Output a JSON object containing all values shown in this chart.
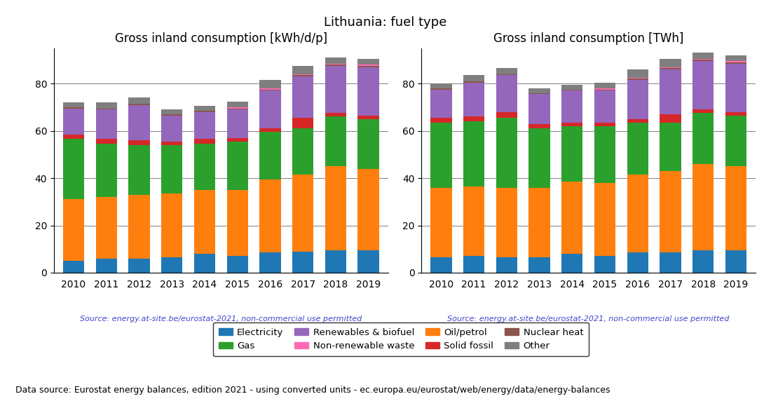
{
  "title": "Lithuania: fuel type",
  "subtitle_left": "Gross inland consumption [kWh/d/p]",
  "subtitle_right": "Gross inland consumption [TWh]",
  "source_text": "Source: energy.at-site.be/eurostat-2021, non-commercial use permitted",
  "footer_text": "Data source: Eurostat energy balances, edition 2021 - using converted units - ec.europa.eu/eurostat/web/energy/data/energy-balances",
  "years": [
    2010,
    2011,
    2012,
    2013,
    2014,
    2015,
    2016,
    2017,
    2018,
    2019
  ],
  "left_data": {
    "Electricity": [
      5.0,
      6.0,
      6.0,
      6.5,
      8.0,
      7.0,
      8.5,
      9.0,
      9.5,
      9.5
    ],
    "Oil/petrol": [
      26.0,
      26.0,
      27.0,
      27.0,
      27.0,
      28.0,
      31.0,
      32.5,
      35.5,
      34.5
    ],
    "Gas": [
      25.5,
      22.5,
      21.0,
      20.5,
      19.5,
      20.5,
      20.0,
      19.5,
      21.0,
      21.0
    ],
    "Solid fossil": [
      2.0,
      2.0,
      2.0,
      1.5,
      2.0,
      1.5,
      1.5,
      4.5,
      1.5,
      1.5
    ],
    "Renewables & biofuel": [
      11.0,
      12.5,
      15.0,
      11.0,
      11.5,
      12.0,
      16.0,
      17.5,
      20.0,
      20.5
    ],
    "Nuclear heat": [
      0.5,
      0.5,
      0.5,
      0.5,
      0.5,
      0.5,
      0.5,
      0.5,
      0.5,
      0.5
    ],
    "Non-renewable waste": [
      0.0,
      0.0,
      0.0,
      0.0,
      0.0,
      0.5,
      0.5,
      0.5,
      0.5,
      0.5
    ],
    "Other": [
      2.0,
      2.5,
      2.5,
      2.0,
      2.0,
      2.5,
      3.5,
      3.5,
      2.5,
      2.5
    ]
  },
  "right_data": {
    "Electricity": [
      6.5,
      7.0,
      6.5,
      6.5,
      8.0,
      7.0,
      8.5,
      8.5,
      9.5,
      9.5
    ],
    "Oil/petrol": [
      29.5,
      29.5,
      29.5,
      29.5,
      30.5,
      31.0,
      33.0,
      34.5,
      36.5,
      35.5
    ],
    "Gas": [
      27.5,
      27.5,
      29.5,
      25.0,
      23.5,
      24.0,
      22.0,
      20.5,
      21.5,
      21.5
    ],
    "Solid fossil": [
      2.0,
      2.0,
      2.5,
      2.0,
      1.5,
      1.5,
      1.5,
      3.5,
      1.5,
      1.5
    ],
    "Renewables & biofuel": [
      12.0,
      14.5,
      15.5,
      12.5,
      13.5,
      13.5,
      16.5,
      19.0,
      20.5,
      20.5
    ],
    "Nuclear heat": [
      0.5,
      0.5,
      0.5,
      0.5,
      0.5,
      0.5,
      0.5,
      0.5,
      0.5,
      0.5
    ],
    "Non-renewable waste": [
      0.0,
      0.0,
      0.0,
      0.0,
      0.0,
      0.5,
      0.5,
      0.5,
      0.5,
      0.5
    ],
    "Other": [
      2.0,
      2.5,
      2.5,
      2.0,
      2.0,
      2.5,
      3.5,
      3.5,
      2.5,
      2.5
    ]
  },
  "colors": {
    "Electricity": "#1f77b4",
    "Oil/petrol": "#ff7f0e",
    "Gas": "#2ca02c",
    "Solid fossil": "#d62728",
    "Renewables & biofuel": "#9467bd",
    "Nuclear heat": "#8c564b",
    "Non-renewable waste": "#ff69b4",
    "Other": "#7f7f7f"
  },
  "legend_order": [
    "Electricity",
    "Gas",
    "Renewables & biofuel",
    "Non-renewable waste",
    "Oil/petrol",
    "Solid fossil",
    "Nuclear heat",
    "Other"
  ],
  "ylim": [
    0,
    95
  ],
  "yticks": [
    0,
    20,
    40,
    60,
    80
  ],
  "source_color": "#4444cc",
  "footer_fontsize": 9,
  "title_fontsize": 13,
  "axis_title_fontsize": 12
}
